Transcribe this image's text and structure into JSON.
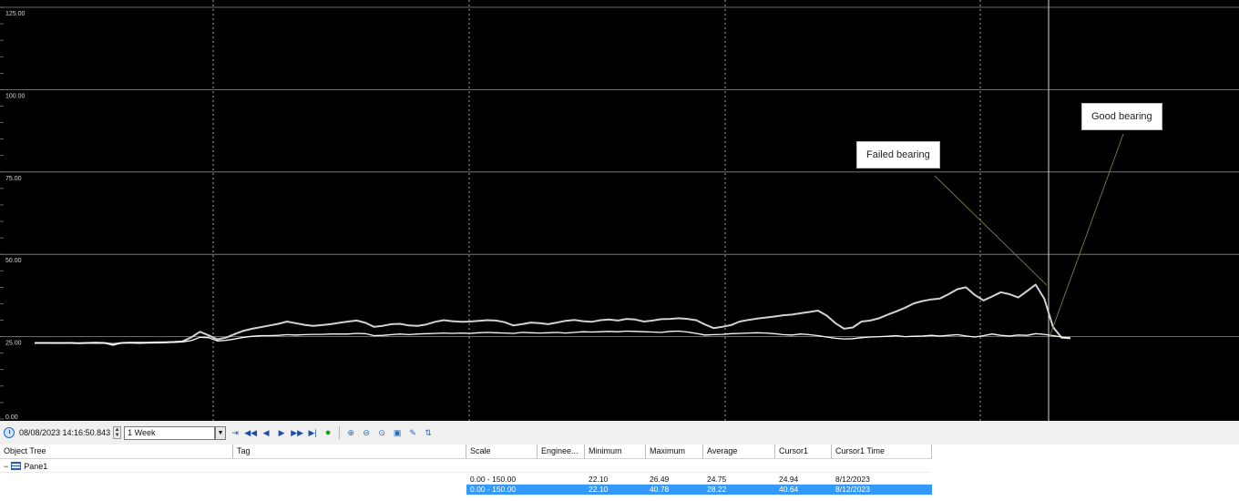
{
  "chart_data": {
    "type": "line",
    "title": "",
    "xlabel": "",
    "ylabel": "",
    "ylim": [
      0,
      125
    ],
    "y_ticks": [
      "0.00",
      "25.00",
      "50.00",
      "75.00",
      "100.00",
      "125.00"
    ],
    "grid": true,
    "series": [
      {
        "values": [
          23.1,
          23.1,
          23.1,
          23.1,
          23.1,
          23.0,
          23.1,
          23.2,
          23.1,
          22.8,
          23.1,
          23.2,
          23.2,
          23.2,
          23.3,
          23.3,
          23.4,
          23.6,
          24.8,
          26.5,
          25.4,
          24.2,
          24.7,
          25.8,
          26.8,
          27.4,
          27.9,
          28.4,
          28.9,
          29.6,
          29.1,
          28.6,
          28.3,
          28.5,
          28.8,
          29.2,
          29.6,
          29.9,
          29.2,
          28.0,
          28.3,
          28.8,
          28.9,
          28.4,
          28.3,
          28.7,
          29.5,
          30.0,
          29.7,
          29.5,
          29.6,
          29.8,
          30.0,
          29.9,
          29.4,
          28.4,
          28.8,
          29.3,
          29.1,
          28.8,
          29.3,
          29.8,
          30.1,
          29.7,
          29.5,
          30.0,
          30.2,
          29.9,
          30.4,
          30.2,
          29.6,
          29.9,
          30.3,
          30.4,
          30.6,
          30.4,
          30.0,
          28.7,
          27.6,
          28.0,
          28.5,
          29.6,
          30.1,
          30.5,
          30.8,
          31.1,
          31.5,
          31.7,
          32.1,
          32.5,
          32.9,
          31.4,
          29.1,
          27.4,
          27.8,
          29.6,
          29.9,
          30.6,
          31.7,
          32.7,
          33.8,
          35.1,
          35.8,
          36.3,
          36.6,
          37.9,
          39.4,
          40.0,
          37.7,
          36.0,
          37.2,
          38.5,
          37.9,
          36.9,
          38.8,
          40.8,
          36.5,
          27.9,
          24.7,
          24.5
        ]
      },
      {
        "values": [
          23.1,
          23.1,
          23.1,
          23.0,
          23.2,
          23.0,
          23.1,
          23.0,
          23.1,
          22.4,
          23.1,
          23.1,
          23.0,
          23.1,
          23.1,
          23.2,
          23.3,
          23.4,
          23.8,
          24.8,
          24.7,
          23.7,
          23.9,
          24.3,
          24.8,
          25.1,
          25.3,
          25.3,
          25.4,
          25.6,
          25.5,
          25.6,
          25.7,
          25.7,
          25.8,
          25.8,
          25.8,
          26.0,
          25.9,
          25.3,
          25.4,
          25.6,
          25.8,
          25.6,
          25.8,
          25.9,
          26.0,
          26.1,
          26.0,
          26.1,
          26.0,
          26.2,
          26.3,
          26.2,
          26.1,
          26.0,
          26.3,
          26.2,
          26.1,
          26.2,
          26.3,
          26.1,
          26.3,
          26.5,
          26.4,
          26.5,
          26.6,
          26.5,
          26.7,
          26.6,
          26.5,
          26.4,
          26.3,
          26.6,
          26.7,
          26.4,
          26.0,
          25.5,
          25.6,
          25.7,
          25.9,
          26.0,
          26.1,
          26.2,
          26.1,
          25.9,
          25.6,
          25.5,
          25.8,
          25.6,
          25.3,
          24.9,
          24.5,
          24.3,
          24.4,
          24.7,
          24.9,
          25.0,
          25.1,
          25.3,
          25.0,
          25.1,
          25.2,
          25.4,
          25.2,
          25.4,
          25.6,
          25.2,
          24.9,
          25.3,
          25.8,
          25.4,
          25.2,
          25.5,
          25.4,
          25.9,
          25.7,
          25.3,
          24.9,
          24.6
        ]
      }
    ],
    "annotations": [
      "Failed bearing",
      "Good bearing"
    ],
    "cursor_value_failed": 40.64,
    "cursor_value_good": 24.94
  },
  "annotations": {
    "failed": "Failed bearing",
    "good": "Good bearing"
  },
  "toolbar": {
    "datetime": "08/08/2023 14:16:50.843",
    "duration": "1 Week",
    "icons": [
      "clock-icon",
      "time-bar-icon",
      "first-icon",
      "back-icon",
      "forward-icon",
      "fast-forward-icon",
      "last-icon",
      "live-icon",
      "zoom-in-icon",
      "zoom-out-icon",
      "zoom-reset-icon",
      "zoom-area-icon",
      "edit-icon",
      "tag-picker-icon"
    ]
  },
  "grid": {
    "headers": {
      "object_tree": "Object Tree",
      "tag": "Tag",
      "scale": "Scale",
      "engineering": "Enginee...",
      "minimum": "Minimum",
      "maximum": "Maximum",
      "average": "Average",
      "cursor1": "Cursor1",
      "cursor1_time": "Cursor1 Time"
    },
    "tree": {
      "expander": "−",
      "pane": "Pane1"
    },
    "rows": [
      {
        "scale": "0.00 - 150.00",
        "minimum": "22.10",
        "maximum": "26.49",
        "average": "24.75",
        "cursor1": "24.94",
        "cursor1_time": "8/12/2023"
      },
      {
        "scale": "0.00 - 150.00",
        "minimum": "22.10",
        "maximum": "40.78",
        "average": "28.22",
        "cursor1": "40.64",
        "cursor1_time": "8/12/2023"
      }
    ]
  }
}
